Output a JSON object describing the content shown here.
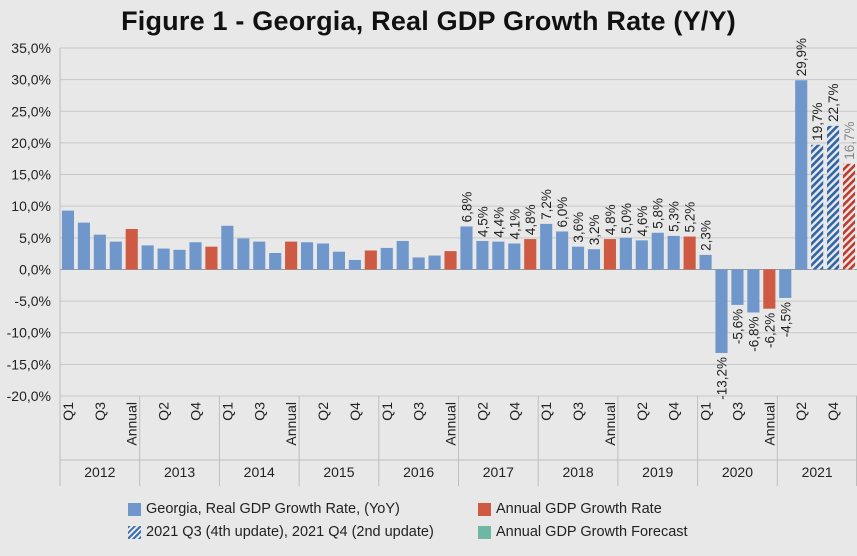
{
  "title": "Figure 1 - Georgia, Real GDP Growth Rate (Y/Y)",
  "colors": {
    "quarterly": "#6f97cc",
    "annual": "#cf5a43",
    "hatch_blue": "#2f64a6",
    "hatch_red": "#c0392b",
    "forecast": "#6fb7a2",
    "grid": "#c7c7c7"
  },
  "legend": [
    {
      "label": "Georgia, Real GDP Growth Rate, (YoY)",
      "swatch": "quarterly"
    },
    {
      "label": "Annual GDP Growth Rate",
      "swatch": "annual"
    },
    {
      "label": "2021 Q3 (4th update), 2021 Q4 (2nd update)",
      "swatch": "hatch"
    },
    {
      "label": "Annual GDP Growth Forecast",
      "swatch": "forecast"
    }
  ],
  "chart_data": {
    "type": "bar",
    "title": "Figure 1 - Georgia, Real GDP Growth Rate (Y/Y)",
    "ylim": [
      -20,
      35
    ],
    "y_ticks": [
      "35,0%",
      "30,0%",
      "25,0%",
      "20,0%",
      "15,0%",
      "10,0%",
      "5,0%",
      "0,0%",
      "-5,0%",
      "-10,0%",
      "-15,0%",
      "-20,0%"
    ],
    "tick_values": [
      35,
      30,
      25,
      20,
      15,
      10,
      5,
      0,
      -5,
      -10,
      -15,
      -20
    ],
    "groups": [
      {
        "year": "2012",
        "bars": [
          {
            "label": "Q1",
            "value": 9.3,
            "kind": "q"
          },
          {
            "label": "",
            "value": 7.4,
            "kind": "q"
          },
          {
            "label": "Q3",
            "value": 5.5,
            "kind": "q"
          },
          {
            "label": "",
            "value": 4.4,
            "kind": "q"
          },
          {
            "label": "Annual",
            "value": 6.4,
            "kind": "a"
          }
        ]
      },
      {
        "year": "2013",
        "bars": [
          {
            "label": "",
            "value": 3.8,
            "kind": "q"
          },
          {
            "label": "Q2",
            "value": 3.3,
            "kind": "q"
          },
          {
            "label": "",
            "value": 3.1,
            "kind": "q"
          },
          {
            "label": "Q4",
            "value": 4.3,
            "kind": "q"
          },
          {
            "label": "",
            "value": 3.6,
            "kind": "a"
          }
        ]
      },
      {
        "year": "2014",
        "bars": [
          {
            "label": "Q1",
            "value": 6.9,
            "kind": "q"
          },
          {
            "label": "",
            "value": 4.9,
            "kind": "q"
          },
          {
            "label": "Q3",
            "value": 4.4,
            "kind": "q"
          },
          {
            "label": "",
            "value": 2.6,
            "kind": "q"
          },
          {
            "label": "Annual",
            "value": 4.4,
            "kind": "a"
          }
        ]
      },
      {
        "year": "2015",
        "bars": [
          {
            "label": "",
            "value": 4.3,
            "kind": "q"
          },
          {
            "label": "Q2",
            "value": 4.1,
            "kind": "q"
          },
          {
            "label": "",
            "value": 2.8,
            "kind": "q"
          },
          {
            "label": "Q4",
            "value": 1.5,
            "kind": "q"
          },
          {
            "label": "",
            "value": 3.0,
            "kind": "a"
          }
        ]
      },
      {
        "year": "2016",
        "bars": [
          {
            "label": "Q1",
            "value": 3.4,
            "kind": "q"
          },
          {
            "label": "",
            "value": 4.5,
            "kind": "q"
          },
          {
            "label": "Q3",
            "value": 1.9,
            "kind": "q"
          },
          {
            "label": "",
            "value": 2.2,
            "kind": "q"
          },
          {
            "label": "Annual",
            "value": 2.9,
            "kind": "a"
          }
        ]
      },
      {
        "year": "2017",
        "bars": [
          {
            "label": "",
            "value": 6.8,
            "kind": "q",
            "dl": "6,8%"
          },
          {
            "label": "Q2",
            "value": 4.5,
            "kind": "q",
            "dl": "4,5%"
          },
          {
            "label": "",
            "value": 4.4,
            "kind": "q",
            "dl": "4,4%"
          },
          {
            "label": "Q4",
            "value": 4.1,
            "kind": "q",
            "dl": "4,1%"
          },
          {
            "label": "",
            "value": 4.8,
            "kind": "a",
            "dl": "4,8%"
          }
        ]
      },
      {
        "year": "2018",
        "bars": [
          {
            "label": "Q1",
            "value": 7.2,
            "kind": "q",
            "dl": "7,2%"
          },
          {
            "label": "",
            "value": 6.0,
            "kind": "q",
            "dl": "6,0%"
          },
          {
            "label": "Q3",
            "value": 3.6,
            "kind": "q",
            "dl": "3,6%"
          },
          {
            "label": "",
            "value": 3.2,
            "kind": "q",
            "dl": "3,2%"
          },
          {
            "label": "Annual",
            "value": 4.8,
            "kind": "a",
            "dl": "4,8%"
          }
        ]
      },
      {
        "year": "2019",
        "bars": [
          {
            "label": "",
            "value": 5.0,
            "kind": "q",
            "dl": "5,0%"
          },
          {
            "label": "Q2",
            "value": 4.6,
            "kind": "q",
            "dl": "4,6%"
          },
          {
            "label": "",
            "value": 5.8,
            "kind": "q",
            "dl": "5,8%"
          },
          {
            "label": "Q4",
            "value": 5.3,
            "kind": "q",
            "dl": "5,3%"
          },
          {
            "label": "",
            "value": 5.2,
            "kind": "a",
            "dl": "5,2%"
          }
        ]
      },
      {
        "year": "2020",
        "bars": [
          {
            "label": "Q1",
            "value": 2.3,
            "kind": "q",
            "dl": "2,3%"
          },
          {
            "label": "",
            "value": -13.2,
            "kind": "q",
            "dl": "-13,2%"
          },
          {
            "label": "Q3",
            "value": -5.6,
            "kind": "q",
            "dl": "-5,6%"
          },
          {
            "label": "",
            "value": -6.8,
            "kind": "q",
            "dl": "-6,8%"
          },
          {
            "label": "Annual",
            "value": -6.2,
            "kind": "a",
            "dl": "-6,2%"
          }
        ]
      },
      {
        "year": "2021",
        "bars": [
          {
            "label": "",
            "value": -4.5,
            "kind": "q",
            "dl": "-4,5%"
          },
          {
            "label": "Q2",
            "value": 29.9,
            "kind": "q",
            "dl": "29,9%"
          },
          {
            "label": "",
            "value": 19.7,
            "kind": "h",
            "dl": "19,7%"
          },
          {
            "label": "Q4",
            "value": 22.7,
            "kind": "h",
            "dl": "22,7%"
          },
          {
            "label": "",
            "value": 16.7,
            "kind": "hr",
            "dl": "16,7%"
          }
        ]
      }
    ]
  }
}
